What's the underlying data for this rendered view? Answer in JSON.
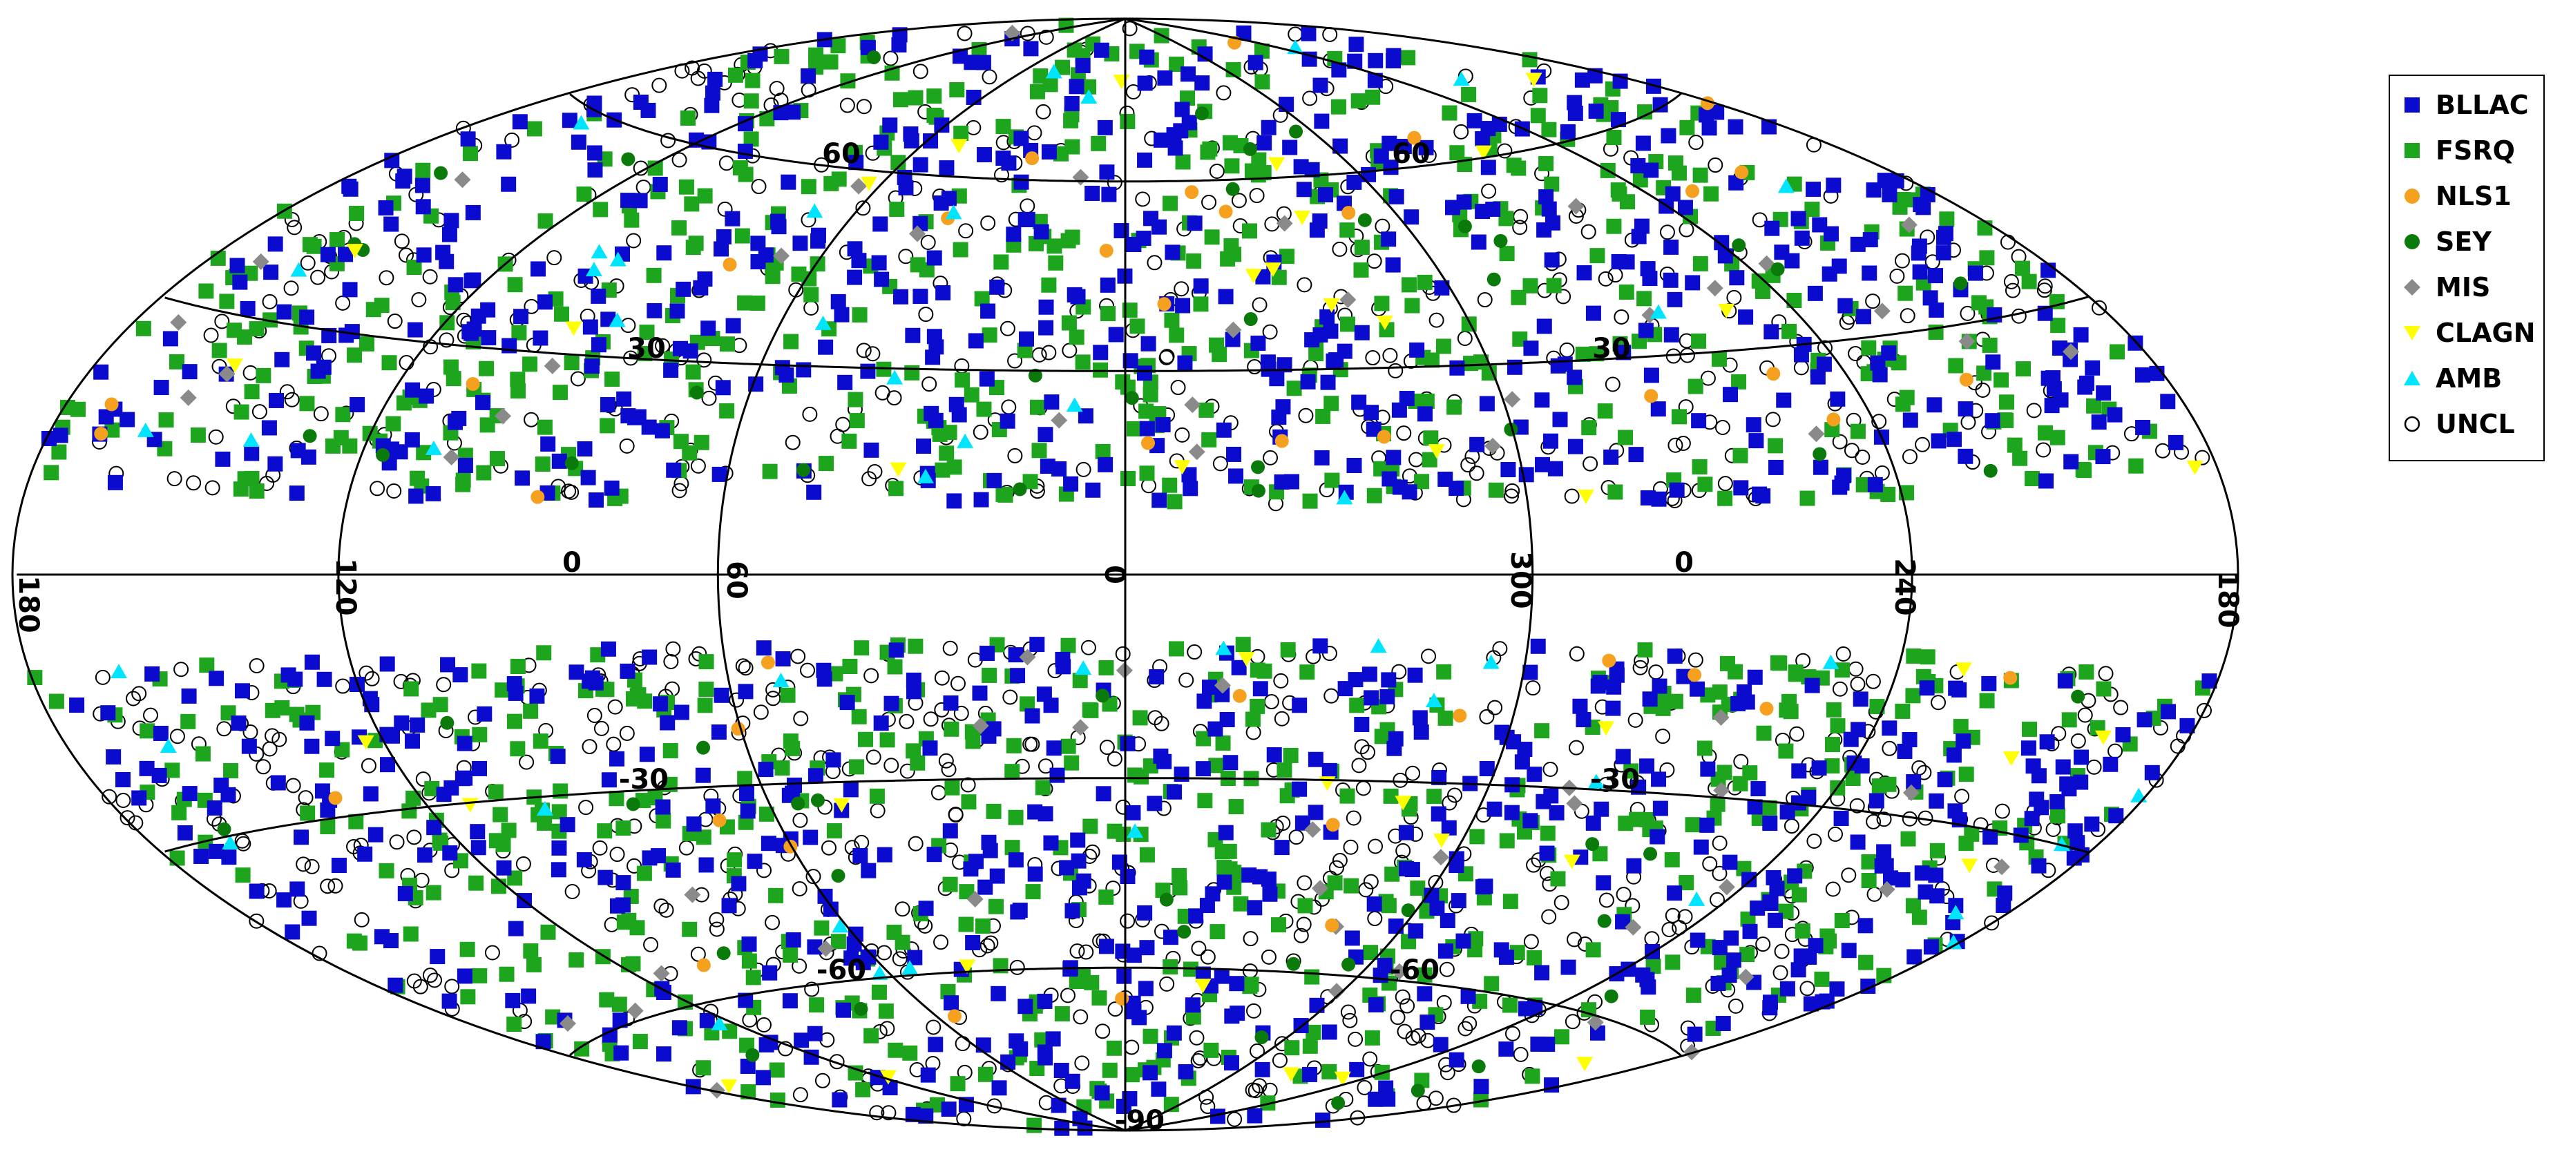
{
  "chart_data": {
    "type": "scatter",
    "projection": "aitoff-hammer-galactic",
    "title": "",
    "grid": true,
    "legend_position": "top-right",
    "axis_labels": {
      "meridian_labels": [
        "180",
        "120",
        "60",
        "0",
        "300",
        "240",
        "180"
      ],
      "parallel_labels": [
        "60",
        "30",
        "0",
        "-30",
        "-60",
        "-90",
        "60",
        "30",
        "0",
        "-30",
        "-60",
        "-90"
      ]
    },
    "xlabels_print": {
      "m180l": "180",
      "m120": "120",
      "m60": "60",
      "m0": "0",
      "m300": "300",
      "m240": "240",
      "m180r": "180"
    },
    "ylabels_print": {
      "p60a": "60",
      "p60b": "60",
      "p30a": "30",
      "p30b": "30",
      "p0a": "0",
      "p0b": "0",
      "pm30a": "-30",
      "pm30b": "-30",
      "pm60a": "-60",
      "pm60b": "-60",
      "pm90": "-90"
    },
    "lat_cut_deg": 10,
    "series": [
      {
        "name": "BLLAC",
        "marker": "square",
        "color": "#0b0bd0",
        "count": 1100,
        "weights": {
          "north": 0.5,
          "south": 0.5
        }
      },
      {
        "name": "FSRQ",
        "marker": "square",
        "color": "#1ea51e",
        "count": 1050,
        "weights": {
          "north": 0.5,
          "south": 0.5
        }
      },
      {
        "name": "NLS1",
        "marker": "circle",
        "color": "#f5a01e",
        "count": 40,
        "weights": {
          "north": 0.6,
          "south": 0.4
        }
      },
      {
        "name": "SEY",
        "marker": "circle",
        "color": "#0a7a0a",
        "count": 55,
        "weights": {
          "north": 0.55,
          "south": 0.45
        }
      },
      {
        "name": "MIS",
        "marker": "diamond",
        "color": "#8a8a8a",
        "count": 60,
        "weights": {
          "north": 0.5,
          "south": 0.5
        }
      },
      {
        "name": "CLAGN",
        "marker": "triangle-down",
        "color": "#ffff00",
        "count": 40,
        "weights": {
          "north": 0.5,
          "south": 0.5
        }
      },
      {
        "name": "AMB",
        "marker": "triangle-up",
        "color": "#00e5ff",
        "count": 45,
        "weights": {
          "north": 0.5,
          "south": 0.5
        }
      },
      {
        "name": "UNCL",
        "marker": "open-circle",
        "color": "#000000",
        "count": 1000,
        "weights": {
          "north": 0.42,
          "south": 0.58
        }
      }
    ]
  }
}
